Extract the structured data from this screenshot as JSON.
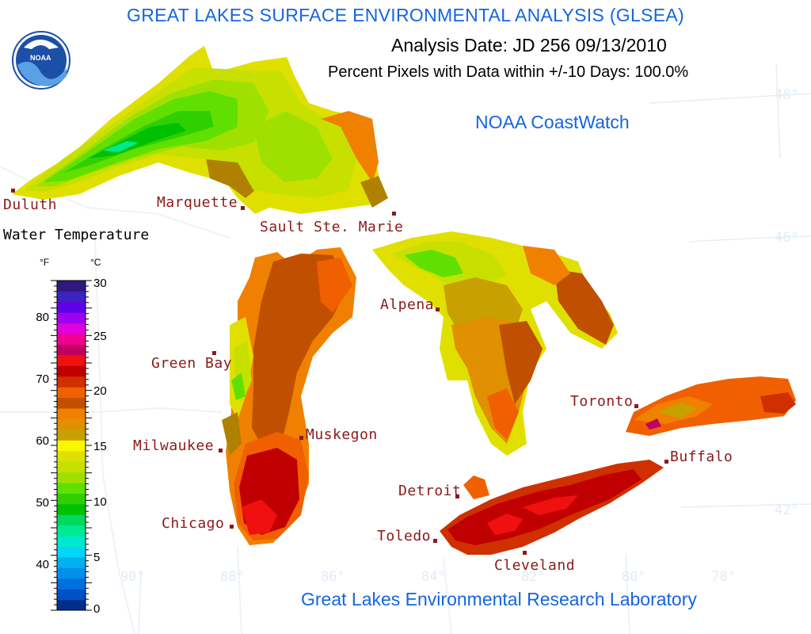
{
  "header": {
    "title": "GREAT LAKES SURFACE ENVIRONMENTAL ANALYSIS (GLSEA)",
    "analysis_date": "Analysis Date:  JD 256 09/13/2010",
    "percent_pixels": "Percent Pixels with Data within +/-10 Days: 100.0%",
    "source": "NOAA CoastWatch"
  },
  "logo": {
    "text": "NOAA",
    "icon": "noaa-logo-icon"
  },
  "footer": {
    "lab": "Great Lakes Environmental Research Laboratory"
  },
  "legend": {
    "title": "Water Temperature",
    "unit_f": "°F",
    "unit_c": "°C",
    "fahrenheit_ticks": [
      "80",
      "70",
      "60",
      "50",
      "40"
    ],
    "celsius_ticks": [
      "30",
      "25",
      "20",
      "15",
      "10",
      "5",
      "0"
    ],
    "colors_bottom_to_top": [
      "#00308c",
      "#0050c8",
      "#0070e0",
      "#0090e8",
      "#00b0f0",
      "#00d8f8",
      "#00e8d0",
      "#00e890",
      "#00d860",
      "#00c000",
      "#30d000",
      "#60e000",
      "#a0e000",
      "#c8e000",
      "#e0e000",
      "#f8f800",
      "#c8a000",
      "#e09000",
      "#f08000",
      "#c05000",
      "#f06000",
      "#d03000",
      "#c00000",
      "#f01010",
      "#c00060",
      "#f00090",
      "#e000e0",
      "#a000f0",
      "#6000e8",
      "#4020c0",
      "#301880"
    ]
  },
  "grid": {
    "latitudes": [
      "48°",
      "46°",
      "42°"
    ],
    "longitudes": [
      "90°",
      "88°",
      "86°",
      "84°",
      "82°",
      "80°",
      "78°"
    ]
  },
  "cities": [
    {
      "name": "Duluth"
    },
    {
      "name": "Marquette"
    },
    {
      "name": "Sault Ste. Marie"
    },
    {
      "name": "Green Bay"
    },
    {
      "name": "Alpena"
    },
    {
      "name": "Milwaukee"
    },
    {
      "name": "Muskegon"
    },
    {
      "name": "Toronto"
    },
    {
      "name": "Buffalo"
    },
    {
      "name": "Detroit"
    },
    {
      "name": "Chicago"
    },
    {
      "name": "Toledo"
    },
    {
      "name": "Cleveland"
    }
  ]
}
